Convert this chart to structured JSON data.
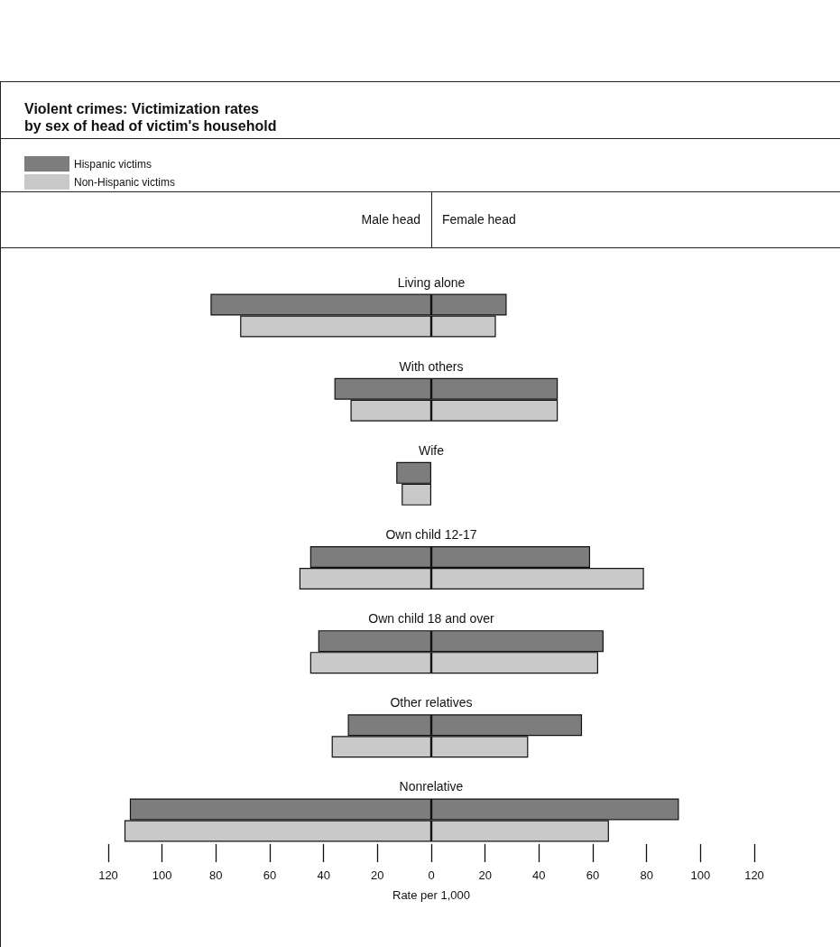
{
  "chart_data": [
    {
      "type": "bar",
      "orientation": "horizontal",
      "title": "Violent crimes: Victimization rates\nby sex of head of victim's household",
      "xlabel": "Rate per 1,000",
      "annotations": [
        "Male head"
      ],
      "categories": [
        "Living alone",
        "With others",
        "Wife",
        "Own child 12-17",
        "Own child 18 and over",
        "Other relatives",
        "Nonrelative"
      ],
      "series": [
        {
          "name": "Hispanic victims",
          "color": "#7d7d7d",
          "values": [
            82,
            36,
            13,
            45,
            42,
            31,
            112
          ]
        },
        {
          "name": "Non-Hispanic victims",
          "color": "#c9c9c9",
          "values": [
            71,
            30,
            11,
            49,
            45,
            37,
            114
          ]
        }
      ],
      "xlim": [
        120,
        0
      ],
      "xticks": [
        120,
        100,
        80,
        60,
        40,
        20,
        0
      ],
      "legend": "top left",
      "grid": false
    },
    {
      "type": "bar",
      "orientation": "horizontal",
      "annotations": [
        "Female head"
      ],
      "categories": [
        null,
        null,
        null,
        null,
        null,
        null,
        null
      ],
      "series": [
        {
          "color": "#7d7d7d",
          "values": [
            28,
            47,
            null,
            59,
            64,
            56,
            92
          ]
        },
        {
          "color": "#c9c9c9",
          "values": [
            24,
            47,
            null,
            79,
            62,
            36,
            66
          ]
        }
      ],
      "xlim": [
        0,
        120
      ],
      "xticks": [
        20,
        40,
        60,
        80,
        100,
        120
      ],
      "tick_labels": "x",
      "grid": false
    }
  ]
}
